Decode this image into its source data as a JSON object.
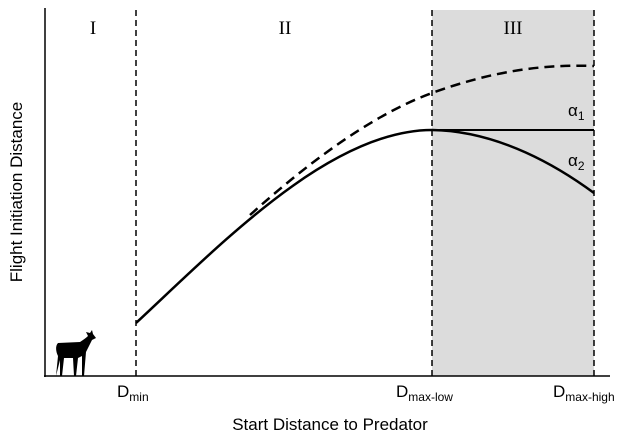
{
  "regions": [
    "I",
    "II",
    "III"
  ],
  "x_axis_label": "Start Distance to Predator",
  "y_axis_label": "Flight Initiation Distance",
  "x_marks": [
    {
      "main": "D",
      "sub": "min"
    },
    {
      "main": "D",
      "sub": "max-low"
    },
    {
      "main": "D",
      "sub": "max-high"
    }
  ],
  "curve_labels": [
    {
      "main": "α",
      "sub": "1"
    },
    {
      "main": "α",
      "sub": "2"
    }
  ]
}
